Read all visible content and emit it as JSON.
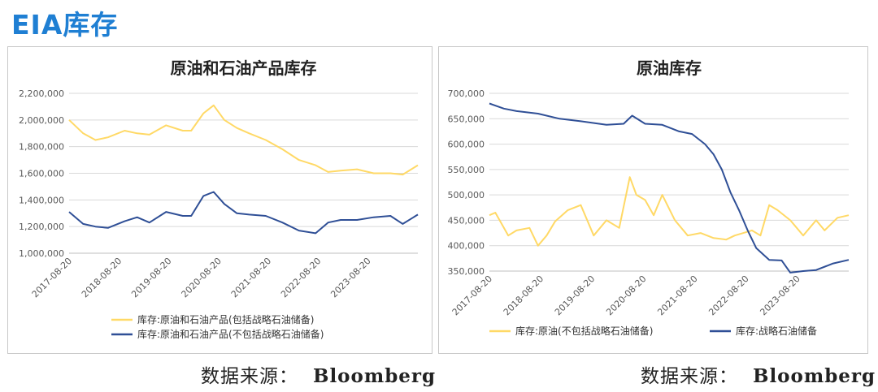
{
  "page": {
    "title": "EIA库存"
  },
  "colors": {
    "yellow": "#ffd966",
    "blue": "#2f4f96",
    "grid": "#d9d9d9",
    "axis": "#595959",
    "title": "#1f7fd3"
  },
  "sources": [
    {
      "label": "数据来源：",
      "brand": "Bloomberg"
    },
    {
      "label": "数据来源：",
      "brand": "Bloomberg"
    }
  ],
  "chart_data": [
    {
      "type": "line",
      "title": "原油和石油产品库存",
      "ylim": [
        1000000,
        2200000
      ],
      "yticks": [
        1000000,
        1200000,
        1400000,
        1600000,
        1800000,
        2000000,
        2200000
      ],
      "ytick_labels": [
        "1,000,000",
        "1,200,000",
        "1,400,000",
        "1,600,000",
        "1,800,000",
        "2,000,000",
        "2,200,000"
      ],
      "xlim": [
        "2017-08-20",
        "2024-08-20"
      ],
      "xticks": [
        "2017-08-20",
        "2018-08-20",
        "2019-08-20",
        "2020-08-20",
        "2021-08-20",
        "2022-08-20",
        "2023-08-20"
      ],
      "legend_position": "bottom",
      "grid": true,
      "series": [
        {
          "name": "库存:原油和石油产品(包括战略石油储备)",
          "color": "#ffd966",
          "x": [
            "2017-08-20",
            "2017-12-01",
            "2018-03-01",
            "2018-06-01",
            "2018-10-01",
            "2019-01-01",
            "2019-04-01",
            "2019-08-01",
            "2019-12-01",
            "2020-02-01",
            "2020-05-01",
            "2020-07-15",
            "2020-10-01",
            "2021-01-01",
            "2021-04-01",
            "2021-08-01",
            "2021-12-01",
            "2022-04-01",
            "2022-08-01",
            "2022-11-01",
            "2023-02-01",
            "2023-06-01",
            "2023-10-01",
            "2024-02-01",
            "2024-05-01",
            "2024-08-20"
          ],
          "y": [
            2000000,
            1900000,
            1850000,
            1870000,
            1920000,
            1900000,
            1890000,
            1960000,
            1920000,
            1920000,
            2050000,
            2110000,
            2000000,
            1940000,
            1900000,
            1850000,
            1780000,
            1700000,
            1660000,
            1610000,
            1620000,
            1630000,
            1600000,
            1600000,
            1590000,
            1660000
          ]
        },
        {
          "name": "库存:原油和石油产品(不包括战略石油储备)",
          "color": "#2f4f96",
          "x": [
            "2017-08-20",
            "2017-12-01",
            "2018-03-01",
            "2018-06-01",
            "2018-10-01",
            "2019-01-01",
            "2019-04-01",
            "2019-08-01",
            "2019-12-01",
            "2020-02-01",
            "2020-05-01",
            "2020-07-15",
            "2020-10-01",
            "2021-01-01",
            "2021-04-01",
            "2021-08-01",
            "2021-12-01",
            "2022-04-01",
            "2022-08-01",
            "2022-11-01",
            "2023-02-01",
            "2023-06-01",
            "2023-10-01",
            "2024-02-01",
            "2024-05-01",
            "2024-08-20"
          ],
          "y": [
            1310000,
            1220000,
            1200000,
            1190000,
            1240000,
            1270000,
            1230000,
            1310000,
            1280000,
            1280000,
            1430000,
            1460000,
            1370000,
            1300000,
            1290000,
            1280000,
            1230000,
            1170000,
            1150000,
            1230000,
            1250000,
            1250000,
            1270000,
            1280000,
            1220000,
            1290000
          ]
        }
      ]
    },
    {
      "type": "line",
      "title": "原油库存",
      "ylim": [
        350000,
        700000
      ],
      "yticks": [
        350000,
        400000,
        450000,
        500000,
        550000,
        600000,
        650000,
        700000
      ],
      "ytick_labels": [
        "350,000",
        "400,000",
        "450,000",
        "500,000",
        "550,000",
        "600,000",
        "650,000",
        "700,000"
      ],
      "xlim": [
        "2017-08-20",
        "2024-08-20"
      ],
      "xticks": [
        "2017-08-20",
        "2018-08-20",
        "2019-08-20",
        "2020-08-20",
        "2021-08-20",
        "2022-08-20",
        "2023-08-20"
      ],
      "legend_position": "bottom",
      "grid": true,
      "series": [
        {
          "name": "库存:原油(不包括战略石油储备)",
          "color": "#ffd966",
          "x": [
            "2017-08-20",
            "2017-10-01",
            "2018-01-01",
            "2018-03-01",
            "2018-06-01",
            "2018-08-01",
            "2018-10-01",
            "2018-12-01",
            "2019-03-01",
            "2019-06-01",
            "2019-09-01",
            "2019-12-01",
            "2020-03-01",
            "2020-05-15",
            "2020-07-01",
            "2020-09-01",
            "2020-11-01",
            "2021-01-01",
            "2021-04-01",
            "2021-07-01",
            "2021-10-01",
            "2022-01-01",
            "2022-04-01",
            "2022-06-01",
            "2022-08-01",
            "2022-10-01",
            "2022-12-01",
            "2023-02-01",
            "2023-04-01",
            "2023-07-01",
            "2023-10-01",
            "2024-01-01",
            "2024-03-01",
            "2024-06-01",
            "2024-08-20"
          ],
          "y": [
            460000,
            465000,
            420000,
            430000,
            435000,
            400000,
            420000,
            448000,
            470000,
            480000,
            420000,
            450000,
            435000,
            535000,
            500000,
            490000,
            460000,
            500000,
            450000,
            420000,
            425000,
            415000,
            412000,
            420000,
            425000,
            430000,
            420000,
            480000,
            470000,
            450000,
            420000,
            450000,
            430000,
            455000,
            460000
          ]
        },
        {
          "name": "库存:战略石油储备",
          "color": "#2f4f96",
          "x": [
            "2017-08-20",
            "2017-12-01",
            "2018-03-01",
            "2018-08-01",
            "2019-01-01",
            "2019-06-01",
            "2019-12-01",
            "2020-04-01",
            "2020-06-01",
            "2020-09-01",
            "2021-01-01",
            "2021-05-01",
            "2021-08-01",
            "2021-11-01",
            "2022-01-01",
            "2022-03-01",
            "2022-05-01",
            "2022-07-01",
            "2022-09-01",
            "2022-11-01",
            "2023-02-01",
            "2023-05-01",
            "2023-07-01",
            "2023-10-01",
            "2024-01-01",
            "2024-05-01",
            "2024-08-20"
          ],
          "y": [
            680000,
            670000,
            665000,
            660000,
            650000,
            645000,
            638000,
            640000,
            656000,
            640000,
            638000,
            625000,
            620000,
            600000,
            580000,
            550000,
            505000,
            470000,
            430000,
            395000,
            372000,
            371000,
            347000,
            350000,
            352000,
            365000,
            372000
          ]
        }
      ]
    }
  ]
}
